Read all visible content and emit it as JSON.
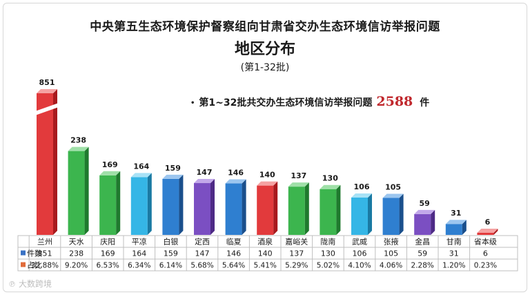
{
  "header": {
    "title": "中央第五生态环境保护督察组向甘肃省交办生态环境信访举报问题",
    "subtitle": "地区分布",
    "batch": "(第1-32批)"
  },
  "note": {
    "bullet": "•",
    "text": "第1~32批共交办生态环境信访举报问题",
    "total": "2588",
    "unit": "件"
  },
  "watermark": "大数跨境",
  "chart_data": {
    "type": "bar",
    "categories": [
      "兰州",
      "天水",
      "庆阳",
      "平凉",
      "白银",
      "定西",
      "临夏",
      "酒泉",
      "嘉峪关",
      "陇南",
      "武威",
      "张掖",
      "金昌",
      "甘南",
      "省本级"
    ],
    "values": [
      851,
      238,
      169,
      164,
      159,
      147,
      146,
      140,
      137,
      130,
      106,
      105,
      59,
      31,
      6
    ],
    "shares": [
      "32.88%",
      "9.20%",
      "6.53%",
      "6.34%",
      "6.14%",
      "5.68%",
      "5.64%",
      "5.41%",
      "5.29%",
      "5.02%",
      "4.10%",
      "4.06%",
      "2.28%",
      "1.20%",
      "0.23%"
    ],
    "colors": [
      "red",
      "green",
      "green",
      "cyan",
      "blue",
      "purple",
      "blue",
      "red",
      "green",
      "green",
      "cyan",
      "blue",
      "purple",
      "blue",
      "red"
    ],
    "row_labels": {
      "count": "件数",
      "share": "占比"
    },
    "legend_colors": {
      "count": "#3a72c4",
      "share": "#e06b3a"
    },
    "axis_break": true
  }
}
